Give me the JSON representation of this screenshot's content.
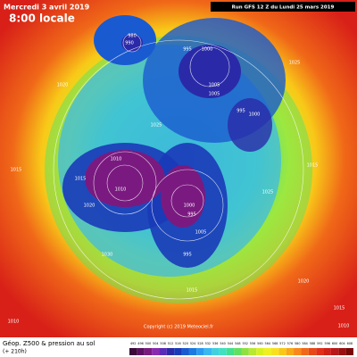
{
  "header": {
    "date": "Mercredi 3 avril 2019",
    "time": "8:00 locale",
    "run": "Run GFS 12 Z du Lundi 25 mars 2019"
  },
  "footer": {
    "title": "Géop. Z500 & pression au sol",
    "lead": "(+ 210h)",
    "copyright": "Copyright (c) 2019 Meteociel.fr"
  },
  "pressure_labels": [
    "980",
    "990",
    "1000",
    "995",
    "1005",
    "1000",
    "995",
    "1005",
    "1010",
    "1015",
    "1020",
    "1010",
    "1000",
    "995",
    "1005",
    "995",
    "1015",
    "1020",
    "1025",
    "1030",
    "1025",
    "1015",
    "1010",
    "1010",
    "1015",
    "1020",
    "1025",
    "1015"
  ],
  "colorbar": {
    "ticks": [
      492,
      496,
      500,
      504,
      508,
      512,
      516,
      520,
      524,
      528,
      532,
      536,
      540,
      544,
      548,
      552,
      556,
      560,
      564,
      568,
      572,
      576,
      580,
      584,
      588,
      592,
      596,
      600,
      604,
      608
    ],
    "colors": [
      "#3a0a3a",
      "#5a1060",
      "#7a1a80",
      "#8a2ab0",
      "#5a2ab8",
      "#2a2aa8",
      "#1a3ab8",
      "#1a5ad0",
      "#1a7ae0",
      "#2a9af0",
      "#3ab8f0",
      "#40d0e0",
      "#40e0c0",
      "#40e090",
      "#60e060",
      "#90e040",
      "#b8e830",
      "#d8f020",
      "#f0f020",
      "#f8e020",
      "#f8c818",
      "#f8a818",
      "#f88818",
      "#f06818",
      "#e84818",
      "#e03018",
      "#d02018",
      "#b81818",
      "#981010",
      "#780808"
    ]
  }
}
